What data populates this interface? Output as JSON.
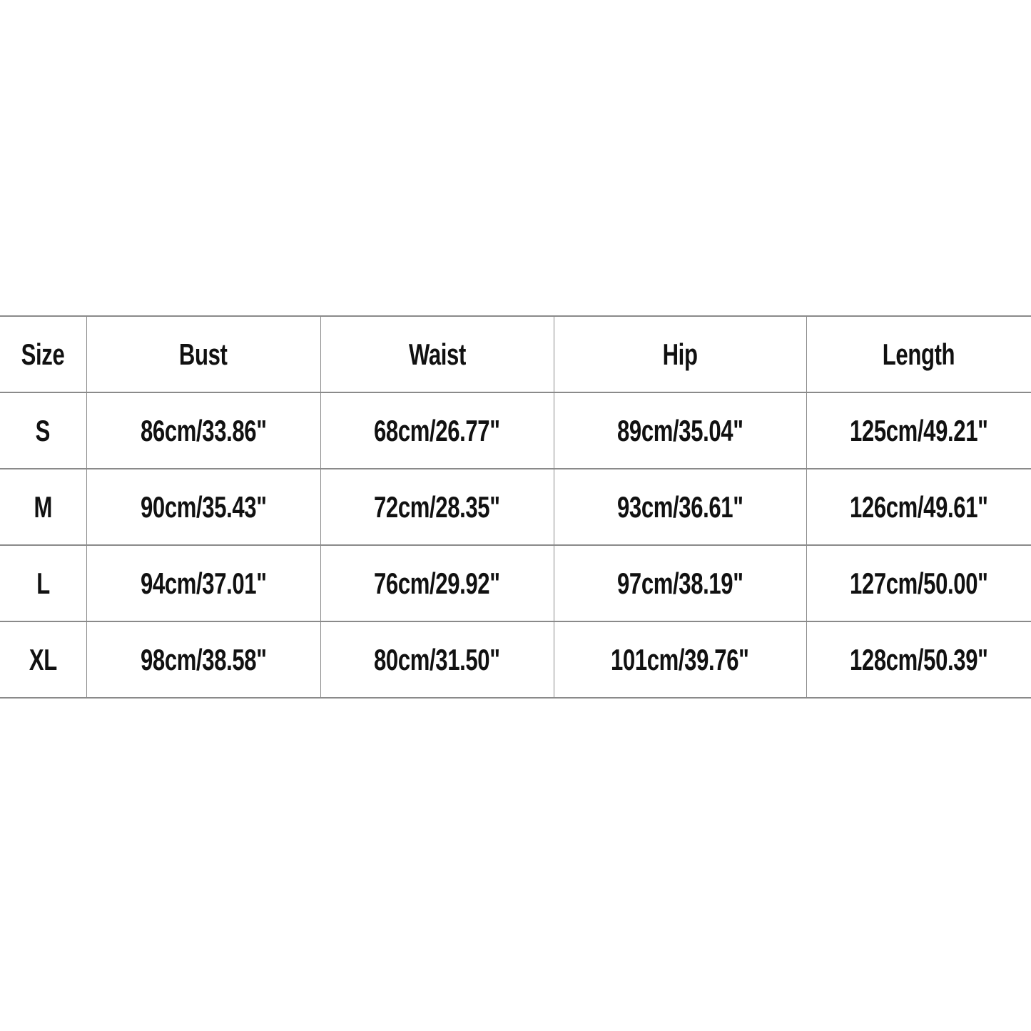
{
  "table": {
    "headers": [
      "Size",
      "Bust",
      "Waist",
      "Hip",
      "Length"
    ],
    "rows": [
      [
        "S",
        "86cm/33.86\"",
        "68cm/26.77\"",
        "89cm/35.04\"",
        "125cm/49.21\""
      ],
      [
        "M",
        "90cm/35.43\"",
        "72cm/28.35\"",
        "93cm/36.61\"",
        "126cm/49.61\""
      ],
      [
        "L",
        "94cm/37.01\"",
        "76cm/29.92\"",
        "97cm/38.19\"",
        "127cm/50.00\""
      ],
      [
        "XL",
        "98cm/38.58\"",
        "80cm/31.50\"",
        "101cm/39.76\"",
        "128cm/50.39\""
      ]
    ]
  }
}
